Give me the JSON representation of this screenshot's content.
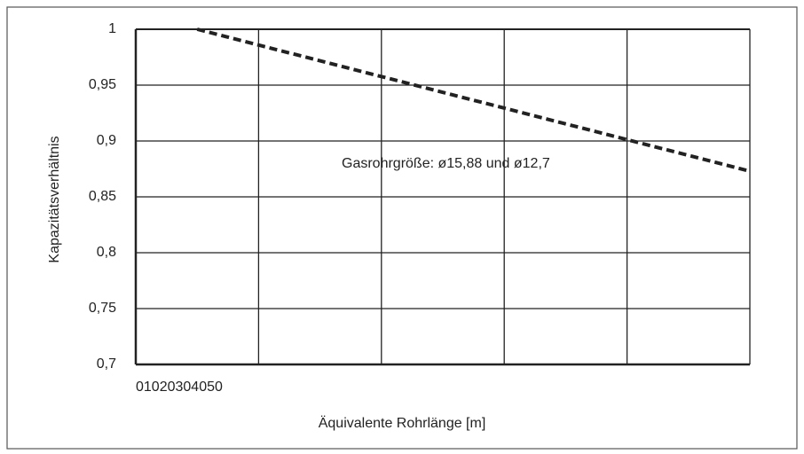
{
  "chart_data": {
    "type": "line",
    "x_label": "Äquivalente Rohrlänge [m]",
    "y_label": "Kapazitätsverhältnis",
    "annotation": "Gasrohrgröße: ø15,88 und ø12,7",
    "x": [
      5,
      50
    ],
    "series": [
      {
        "color": "#222222",
        "values": [
          1,
          0.873
        ]
      }
    ],
    "xlim": [
      0,
      50
    ],
    "xticks": [
      0,
      10,
      20,
      30,
      40,
      50
    ],
    "ylim": [
      0.7,
      1
    ],
    "yticks": [
      {
        "value": 0.7,
        "label": "0,7"
      },
      {
        "value": 0.75,
        "label": "0,75"
      },
      {
        "value": 0.8,
        "label": "0,8"
      },
      {
        "value": 0.85,
        "label": "0,85"
      },
      {
        "value": 0.9,
        "label": "0,9"
      },
      {
        "value": 0.95,
        "label": "0,95"
      },
      1
    ],
    "grid": true,
    "dashed": true
  }
}
